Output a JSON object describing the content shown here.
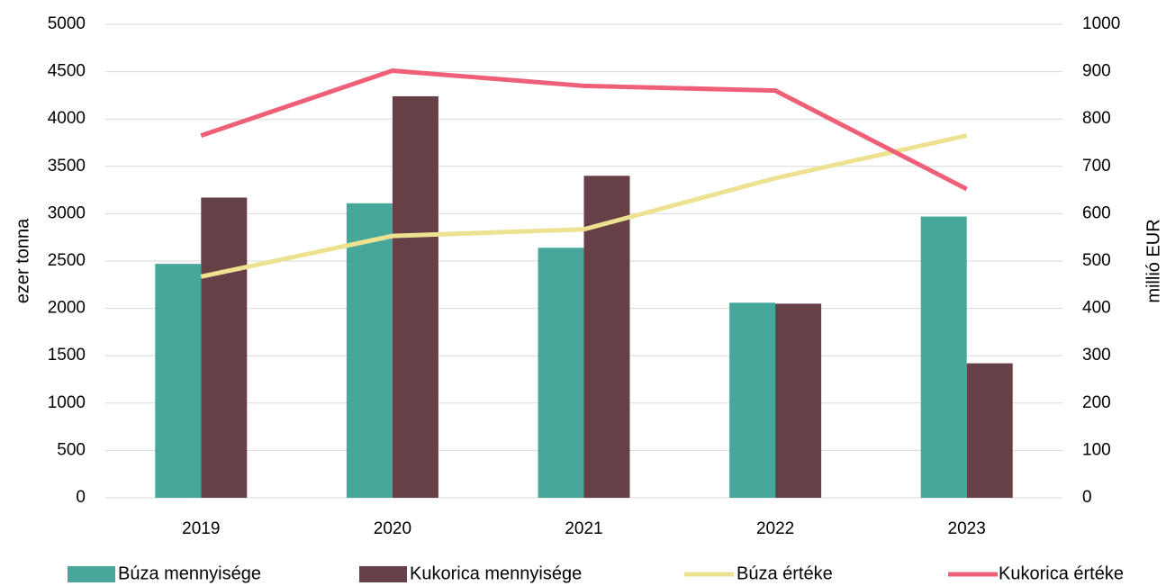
{
  "chart_data": {
    "type": "bar",
    "title": "",
    "categories": [
      "2019",
      "2020",
      "2021",
      "2022",
      "2023"
    ],
    "xlabel": "",
    "ylabel": "ezer tonna",
    "ylabel_right": "millió EUR",
    "ylim": [
      0,
      5000
    ],
    "ylim_right": [
      0,
      1000
    ],
    "yticks": [
      "0",
      "500",
      "1000",
      "1500",
      "2000",
      "2500",
      "3000",
      "3500",
      "4000",
      "4500",
      "5000"
    ],
    "yticks_right": [
      "0",
      "100",
      "200",
      "300",
      "400",
      "500",
      "600",
      "700",
      "800",
      "900",
      "1000"
    ],
    "grid": true,
    "legend_position": "bottom",
    "series": [
      {
        "name": "Búza mennyisége",
        "type": "bar",
        "axis": "left",
        "color": "#46a89a",
        "values": [
          2470,
          3110,
          2640,
          2060,
          2970
        ]
      },
      {
        "name": "Kukorica mennyisége",
        "type": "bar",
        "axis": "left",
        "color": "#663f47",
        "values": [
          3170,
          4240,
          3400,
          2050,
          1420
        ]
      },
      {
        "name": "Búza értéke",
        "type": "line",
        "axis": "right",
        "color": "#ede291",
        "values": [
          467,
          553,
          567,
          675,
          765
        ]
      },
      {
        "name": "Kukorica értéke",
        "type": "line",
        "axis": "right",
        "color": "#ef6078",
        "values": [
          765,
          902,
          870,
          860,
          652
        ]
      }
    ]
  }
}
